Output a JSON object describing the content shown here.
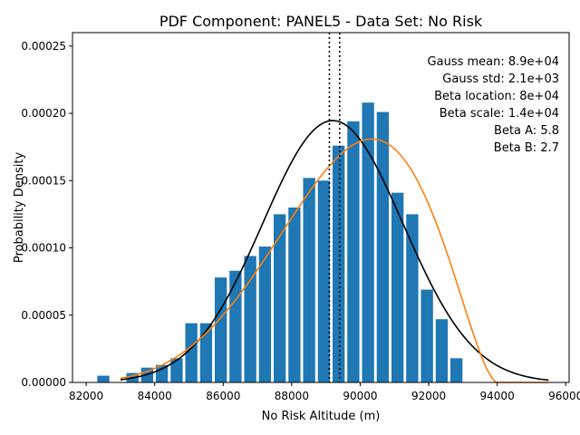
{
  "chart_data": {
    "type": "bar",
    "title": "PDF Component: PANEL5 - Data Set: No Risk",
    "xlabel": "No Risk Altitude (m)",
    "ylabel": "Probability Density",
    "xlim": [
      81600,
      96100
    ],
    "ylim": [
      0,
      0.00026
    ],
    "x_ticks": [
      82000,
      84000,
      86000,
      88000,
      90000,
      92000,
      94000,
      96000
    ],
    "x_tick_labels": [
      "82000",
      "84000",
      "86000",
      "88000",
      "90000",
      "92000",
      "94000",
      "96000"
    ],
    "y_ticks": [
      0,
      5e-05,
      0.0001,
      0.00015,
      0.0002,
      0.00025
    ],
    "y_tick_labels": [
      "0.00000",
      "0.00005",
      "0.00010",
      "0.00015",
      "0.00020",
      "0.00025"
    ],
    "grid": false,
    "histogram": {
      "color": "#1f77b4",
      "bin_width": 430,
      "bins": [
        {
          "x": 82500,
          "y": 5e-06
        },
        {
          "x": 83350,
          "y": 7e-06
        },
        {
          "x": 83780,
          "y": 1.1e-05
        },
        {
          "x": 84210,
          "y": 1.3e-05
        },
        {
          "x": 84640,
          "y": 1.8e-05
        },
        {
          "x": 85070,
          "y": 4.4e-05
        },
        {
          "x": 85500,
          "y": 4.4e-05
        },
        {
          "x": 85930,
          "y": 7.8e-05
        },
        {
          "x": 86360,
          "y": 8.3e-05
        },
        {
          "x": 86790,
          "y": 9.4e-05
        },
        {
          "x": 87220,
          "y": 0.000101
        },
        {
          "x": 87650,
          "y": 0.000125
        },
        {
          "x": 88080,
          "y": 0.00013
        },
        {
          "x": 88510,
          "y": 0.000152
        },
        {
          "x": 88940,
          "y": 0.00015
        },
        {
          "x": 89370,
          "y": 0.000176
        },
        {
          "x": 89800,
          "y": 0.000194
        },
        {
          "x": 90230,
          "y": 0.000208
        },
        {
          "x": 90660,
          "y": 0.000201
        },
        {
          "x": 91090,
          "y": 0.000141
        },
        {
          "x": 91520,
          "y": 0.000125
        },
        {
          "x": 91950,
          "y": 6.9e-05
        },
        {
          "x": 92380,
          "y": 4.7e-05
        },
        {
          "x": 92810,
          "y": 1.8e-05
        }
      ]
    },
    "gauss": {
      "mean": 89200,
      "std": 2050,
      "x_start": 83000,
      "x_end": 95500,
      "color": "#000000"
    },
    "beta": {
      "loc": 80000,
      "scale": 14000,
      "a": 5.8,
      "b": 2.7,
      "x_start": 83000,
      "x_end": 95500,
      "color": "#ff7f0e"
    },
    "vlines": [
      {
        "x": 89100,
        "style": "dotted",
        "color": "#000000"
      },
      {
        "x": 89400,
        "style": "dotted",
        "color": "#000000"
      }
    ],
    "annotations": [
      "Gauss mean: 8.9e+04",
      "Gauss std: 2.1e+03",
      "Beta location: 8e+04",
      "Beta scale: 1.4e+04",
      "Beta A: 5.8",
      "Beta B: 2.7"
    ]
  }
}
